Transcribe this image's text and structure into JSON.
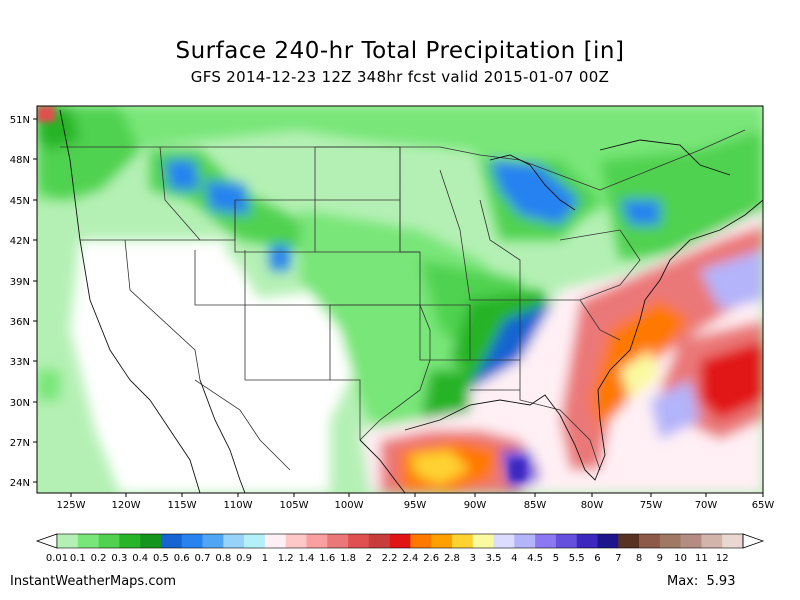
{
  "title": "Surface 240-hr Total Precipitation [in]",
  "subtitle": "GFS 2014-12-23 12Z 348hr fcst valid 2015-01-07 00Z",
  "footer": {
    "site": "InstantWeatherMaps.com",
    "max_label": "Max:",
    "max_value": "5.93"
  },
  "map": {
    "lat_labels": [
      "51N",
      "48N",
      "45N",
      "42N",
      "39N",
      "36N",
      "33N",
      "30N",
      "27N",
      "24N"
    ],
    "lon_labels": [
      "125W",
      "120W",
      "115W",
      "110W",
      "105W",
      "100W",
      "95W",
      "90W",
      "85W",
      "80W",
      "75W",
      "70W",
      "65W"
    ]
  },
  "colorbar": {
    "labels": [
      "0.01",
      "0.1",
      "0.2",
      "0.3",
      "0.4",
      "0.5",
      "0.6",
      "0.7",
      "0.8",
      "0.9",
      "1",
      "1.2",
      "1.4",
      "1.6",
      "1.8",
      "2",
      "2.2",
      "2.4",
      "2.6",
      "2.8",
      "3",
      "3.5",
      "4",
      "4.5",
      "5",
      "5.5",
      "6",
      "7",
      "8",
      "9",
      "10",
      "11",
      "12"
    ],
    "colors": [
      "#b4f0b4",
      "#78e678",
      "#50d250",
      "#28b428",
      "#14961e",
      "#1464d2",
      "#2882f0",
      "#50a5f5",
      "#96d2fa",
      "#b4f0fa",
      "#fff0f5",
      "#ffc8c8",
      "#faa0a0",
      "#eb7878",
      "#e15050",
      "#c83c3c",
      "#e11414",
      "#ff7800",
      "#ffa000",
      "#ffd232",
      "#fafaa0",
      "#dcdcff",
      "#b4b4fa",
      "#8c78f0",
      "#6450dc",
      "#3c28be",
      "#1e148c",
      "#5a3223",
      "#8c5a46",
      "#a07864",
      "#b48c82",
      "#d2b4aa",
      "#ebd7d2"
    ]
  }
}
